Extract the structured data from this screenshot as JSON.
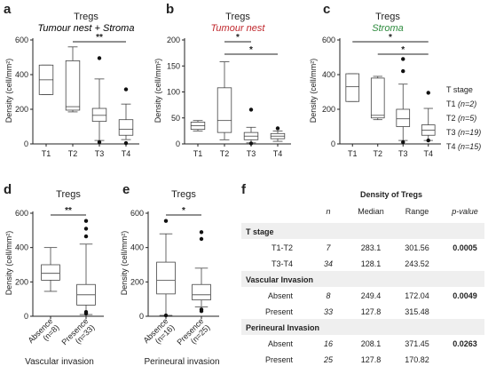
{
  "panels": {
    "a": {
      "letter": "a",
      "title": "Tregs",
      "subtitle": "Tumour nest + Stroma",
      "subtitle_color": "#222222",
      "ylabel": "Density (cell/mm²)"
    },
    "b": {
      "letter": "b",
      "title": "Tregs",
      "subtitle": "Tumour nest",
      "subtitle_color": "#c0282d",
      "ylabel": "Density (cell/mm²)"
    },
    "c": {
      "letter": "c",
      "title": "Tregs",
      "subtitle": "Stroma",
      "subtitle_color": "#2e8b3e",
      "ylabel": "Density (cell/mm²)"
    },
    "d": {
      "letter": "d",
      "title": "Tregs",
      "ylabel": "Density (cell/mm²)",
      "xlabel": "Vascular invasion"
    },
    "e": {
      "letter": "e",
      "title": "Tregs",
      "ylabel": "Density (cell/mm²)",
      "xlabel": "Perineural invasion"
    },
    "f": {
      "letter": "f"
    }
  },
  "legend": {
    "title": "T stage",
    "items": [
      {
        "name": "T1",
        "n": "(n=2)"
      },
      {
        "name": "T2",
        "n": "(n=5)"
      },
      {
        "name": "T3",
        "n": "(n=19)"
      },
      {
        "name": "T4",
        "n": "(n=15)"
      }
    ]
  },
  "chart_data": [
    {
      "id": "a",
      "type": "box",
      "title": "Tregs",
      "subtitle": "Tumour nest + Stroma",
      "ylabel": "Density (cell/mm²)",
      "ylim": [
        0,
        600
      ],
      "yticks": [
        0,
        200,
        400,
        600
      ],
      "categories": [
        "T1",
        "T2",
        "T3",
        "T4"
      ],
      "boxes": [
        {
          "min": 285,
          "q1": 285,
          "median": 370,
          "q3": 455,
          "max": 455,
          "outliers": []
        },
        {
          "min": 185,
          "q1": 195,
          "median": 215,
          "q3": 480,
          "max": 560,
          "outliers": []
        },
        {
          "min": 20,
          "q1": 130,
          "median": 165,
          "q3": 205,
          "max": 375,
          "outliers": [
            495,
            10
          ]
        },
        {
          "min": 25,
          "q1": 50,
          "median": 85,
          "q3": 140,
          "max": 230,
          "outliers": [
            315,
            5
          ]
        }
      ],
      "significance": [
        {
          "from": "T2",
          "to": "T4",
          "label": "**"
        }
      ]
    },
    {
      "id": "b",
      "type": "box",
      "title": "Tregs",
      "subtitle": "Tumour nest",
      "ylabel": "Density (cell/mm²)",
      "ylim": [
        0,
        200
      ],
      "yticks": [
        0,
        50,
        100,
        150,
        200
      ],
      "categories": [
        "T1",
        "T2",
        "T3",
        "T4"
      ],
      "boxes": [
        {
          "min": 25,
          "q1": 28,
          "median": 35,
          "q3": 42,
          "max": 45,
          "outliers": []
        },
        {
          "min": 8,
          "q1": 22,
          "median": 45,
          "q3": 108,
          "max": 158,
          "outliers": []
        },
        {
          "min": 2,
          "q1": 8,
          "median": 15,
          "q3": 22,
          "max": 32,
          "outliers": [
            66,
            1
          ]
        },
        {
          "min": 5,
          "q1": 10,
          "median": 15,
          "q3": 20,
          "max": 25,
          "outliers": [
            30
          ]
        }
      ],
      "significance": [
        {
          "from": "T2",
          "to": "T3",
          "label": "*"
        },
        {
          "from": "T2",
          "to": "T4",
          "label": "*"
        }
      ]
    },
    {
      "id": "c",
      "type": "box",
      "title": "Tregs",
      "subtitle": "Stroma",
      "ylabel": "Density (cell/mm²)",
      "ylim": [
        0,
        600
      ],
      "yticks": [
        0,
        200,
        400,
        600
      ],
      "categories": [
        "T1",
        "T2",
        "T3",
        "T4"
      ],
      "boxes": [
        {
          "min": 245,
          "q1": 245,
          "median": 330,
          "q3": 405,
          "max": 405,
          "outliers": []
        },
        {
          "min": 140,
          "q1": 150,
          "median": 165,
          "q3": 380,
          "max": 390,
          "outliers": []
        },
        {
          "min": 20,
          "q1": 100,
          "median": 145,
          "q3": 200,
          "max": 345,
          "outliers": [
            490,
            420,
            10
          ]
        },
        {
          "min": 20,
          "q1": 50,
          "median": 80,
          "q3": 110,
          "max": 205,
          "outliers": [
            295,
            20
          ]
        }
      ],
      "significance": [
        {
          "from": "T1",
          "to": "T4",
          "label": "*"
        },
        {
          "from": "T2",
          "to": "T4",
          "label": "*"
        }
      ]
    },
    {
      "id": "d",
      "type": "box",
      "title": "Tregs",
      "ylabel": "Density (cell/mm²)",
      "xlabel": "Vascular invasion",
      "ylim": [
        0,
        600
      ],
      "yticks": [
        0,
        200,
        400,
        600
      ],
      "categories": [
        "Absence",
        "Presence"
      ],
      "category_n": [
        "(n=8)",
        "(n=33)"
      ],
      "boxes": [
        {
          "min": 145,
          "q1": 210,
          "median": 250,
          "q3": 300,
          "max": 400,
          "outliers": []
        },
        {
          "min": 10,
          "q1": 65,
          "median": 125,
          "q3": 185,
          "max": 420,
          "outliers": [
            555,
            510,
            465,
            25,
            15
          ]
        }
      ],
      "significance": [
        {
          "from": "Absence",
          "to": "Presence",
          "label": "**"
        }
      ]
    },
    {
      "id": "e",
      "type": "box",
      "title": "Tregs",
      "ylabel": "Density (cell/mm²)",
      "xlabel": "Perineural invasion",
      "ylim": [
        0,
        600
      ],
      "yticks": [
        0,
        200,
        400,
        600
      ],
      "categories": [
        "Absence",
        "Presence"
      ],
      "category_n": [
        "(n=16)",
        "(n=25)"
      ],
      "boxes": [
        {
          "min": 5,
          "q1": 130,
          "median": 210,
          "q3": 315,
          "max": 480,
          "outliers": [
            555,
            5
          ]
        },
        {
          "min": 55,
          "q1": 95,
          "median": 125,
          "q3": 185,
          "max": 280,
          "outliers": [
            490,
            450,
            40,
            30
          ]
        }
      ],
      "significance": [
        {
          "from": "Absence",
          "to": "Presence",
          "label": "*"
        }
      ]
    },
    {
      "id": "f",
      "type": "table",
      "title": "Density of Tregs",
      "columns": [
        "",
        "n",
        "Median",
        "Range",
        "p-value"
      ],
      "sections": [
        {
          "header": "T stage",
          "rows": [
            {
              "label": "T1-T2",
              "n": "7",
              "median": "283.1",
              "range": "301.56",
              "p": "0.0005"
            },
            {
              "label": "T3-T4",
              "n": "34",
              "median": "128.1",
              "range": "243.52",
              "p": ""
            }
          ]
        },
        {
          "header": "Vascular Invasion",
          "rows": [
            {
              "label": "Absent",
              "n": "8",
              "median": "249.4",
              "range": "172.04",
              "p": "0.0049"
            },
            {
              "label": "Present",
              "n": "33",
              "median": "127.8",
              "range": "315.48",
              "p": ""
            }
          ]
        },
        {
          "header": "Perineural Invasion",
          "rows": [
            {
              "label": "Absent",
              "n": "16",
              "median": "208.1",
              "range": "371.45",
              "p": "0.0263"
            },
            {
              "label": "Present",
              "n": "25",
              "median": "127.8",
              "range": "170.82",
              "p": ""
            }
          ]
        }
      ]
    }
  ]
}
